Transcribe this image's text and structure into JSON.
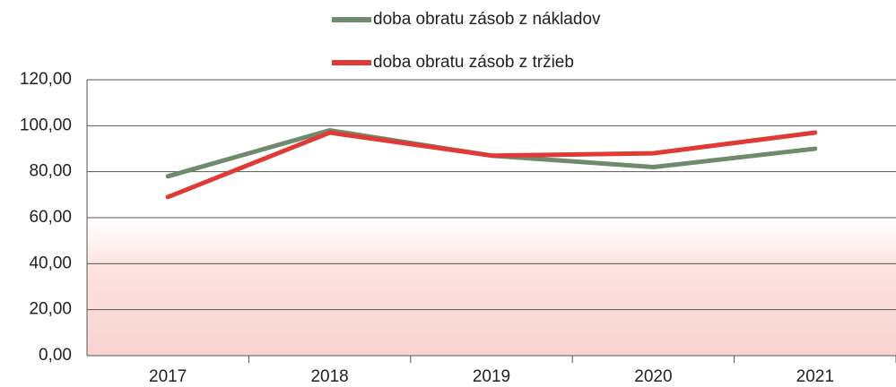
{
  "chart_data": {
    "type": "line",
    "categories": [
      "2017",
      "2018",
      "2019",
      "2020",
      "2021"
    ],
    "series": [
      {
        "name": "doba obratu zásob z nákladov",
        "color": "#6f8a6c",
        "values": [
          78,
          98,
          87,
          82,
          90
        ]
      },
      {
        "name": "doba obratu zásob z tržieb",
        "color": "#e03a36",
        "values": [
          69,
          97,
          87,
          88,
          97
        ]
      }
    ],
    "ylim": [
      0,
      120
    ],
    "yticks": [
      {
        "value": 0,
        "label": "0,00"
      },
      {
        "value": 20,
        "label": "20,00"
      },
      {
        "value": 40,
        "label": "40,00"
      },
      {
        "value": 60,
        "label": "60,00"
      },
      {
        "value": 80,
        "label": "80,00"
      },
      {
        "value": 100,
        "label": "100,00"
      },
      {
        "value": 120,
        "label": "120,00"
      }
    ],
    "grid": true,
    "legend": "top"
  }
}
